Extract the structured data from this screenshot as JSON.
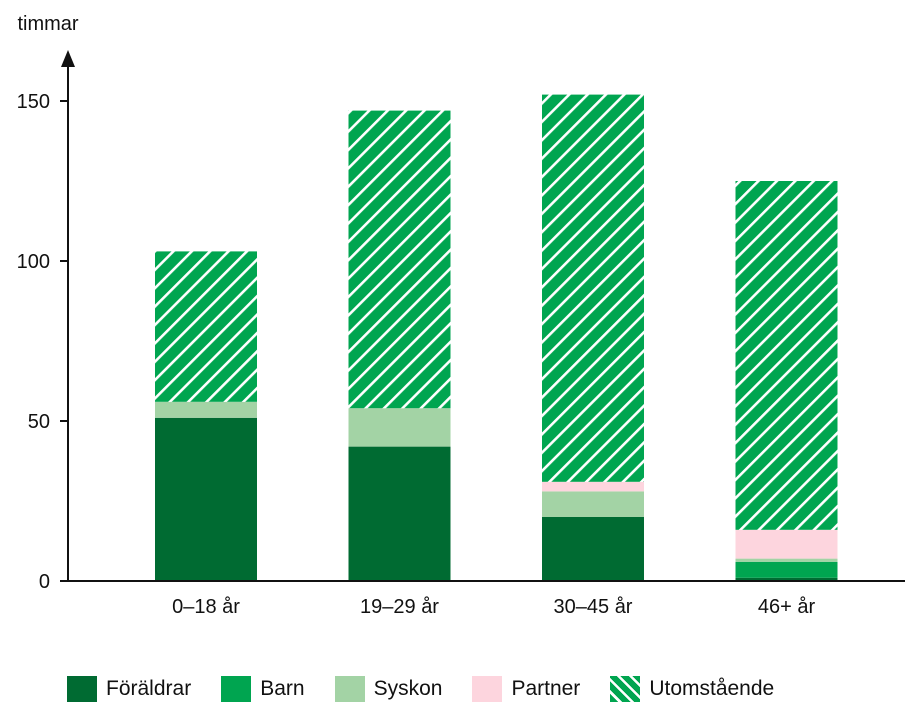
{
  "chart_data": {
    "type": "bar",
    "stacked": true,
    "ylabel": "timmar",
    "xlabel": "",
    "ylim": [
      0,
      160
    ],
    "yticks": [
      0,
      50,
      100,
      150
    ],
    "categories": [
      "0–18 år",
      "19–29 år",
      "30–45 år",
      "46+ år"
    ],
    "series": [
      {
        "name": "Föräldrar",
        "color": "#006b32",
        "values": [
          51,
          42,
          20,
          1
        ]
      },
      {
        "name": "Barn",
        "color": "#00a550",
        "values": [
          0,
          0,
          0,
          5
        ]
      },
      {
        "name": "Syskon",
        "color": "#a3d3a5",
        "values": [
          5,
          12,
          8,
          1
        ]
      },
      {
        "name": "Partner",
        "color": "#fdd5de",
        "values": [
          0,
          0,
          3,
          9
        ]
      },
      {
        "name": "Utomstående",
        "color": "#00a550",
        "pattern": "diagonal-hatch",
        "values": [
          47,
          93,
          121,
          109
        ]
      }
    ],
    "grid": false,
    "legend": "bottom"
  }
}
